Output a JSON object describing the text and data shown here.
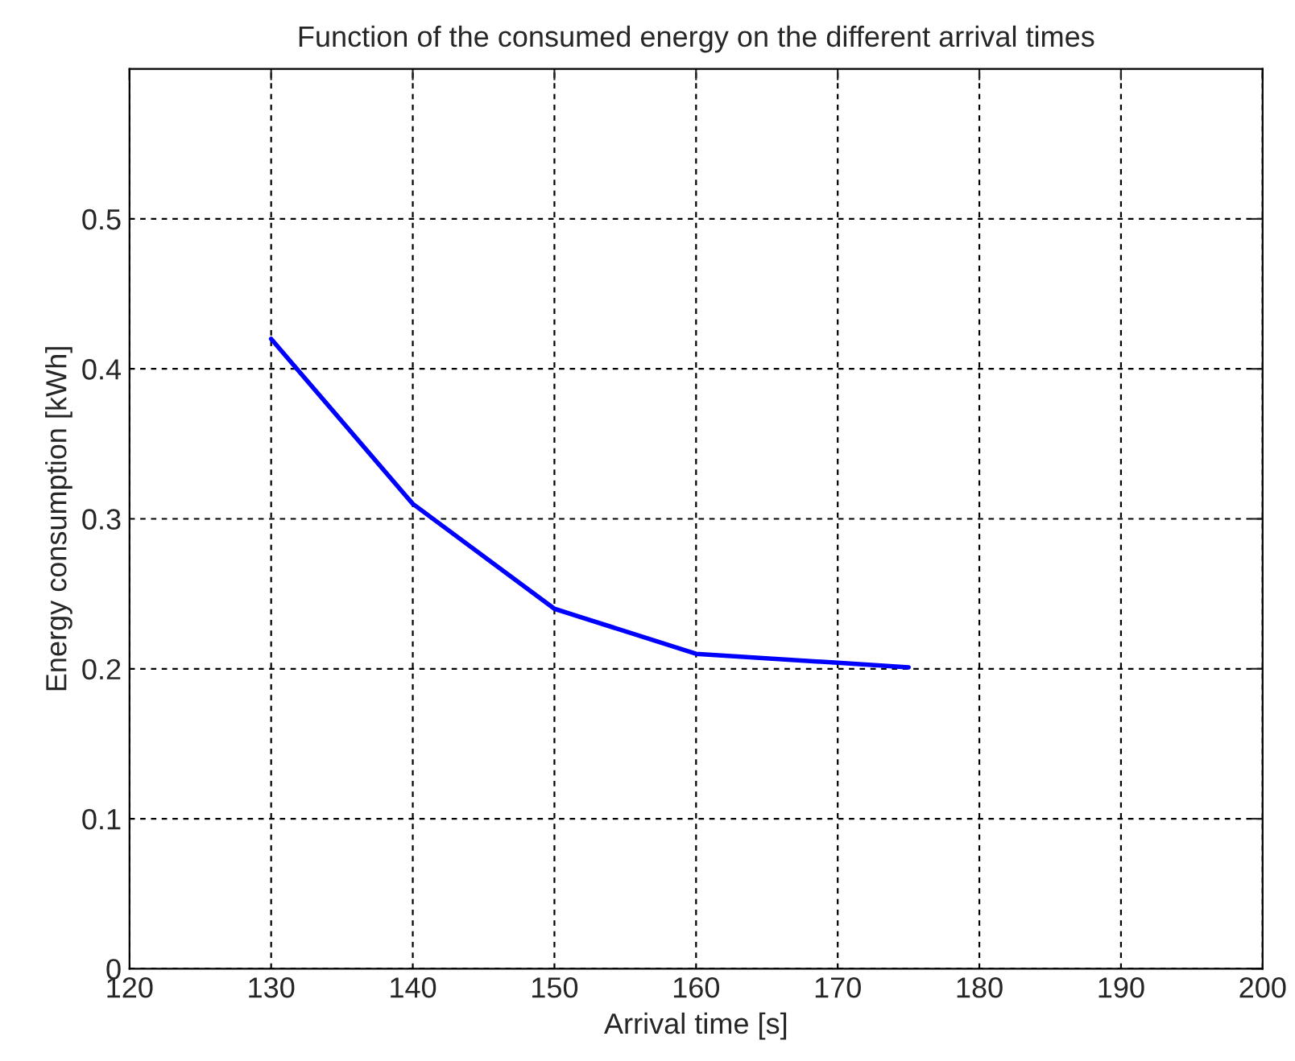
{
  "chart_data": {
    "type": "line",
    "title": "Function of the consumed energy on the different arrival times",
    "xlabel": "Arrival time [s]",
    "ylabel": "Energy consumption [kWh]",
    "x": [
      130,
      140,
      150,
      160,
      170,
      175
    ],
    "series": [
      {
        "color": "#0000ff",
        "values": [
          0.42,
          0.31,
          0.24,
          0.21,
          0.204,
          0.201
        ]
      }
    ],
    "xlim": [
      120,
      200
    ],
    "ylim": [
      0,
      0.6
    ],
    "xticks": [
      120,
      130,
      140,
      150,
      160,
      170,
      180,
      190,
      200
    ],
    "yticks": [
      0,
      0.1,
      0.2,
      0.3,
      0.4,
      0.5
    ],
    "grid": true,
    "legend": false,
    "marker": "none",
    "line_style": "solid"
  }
}
